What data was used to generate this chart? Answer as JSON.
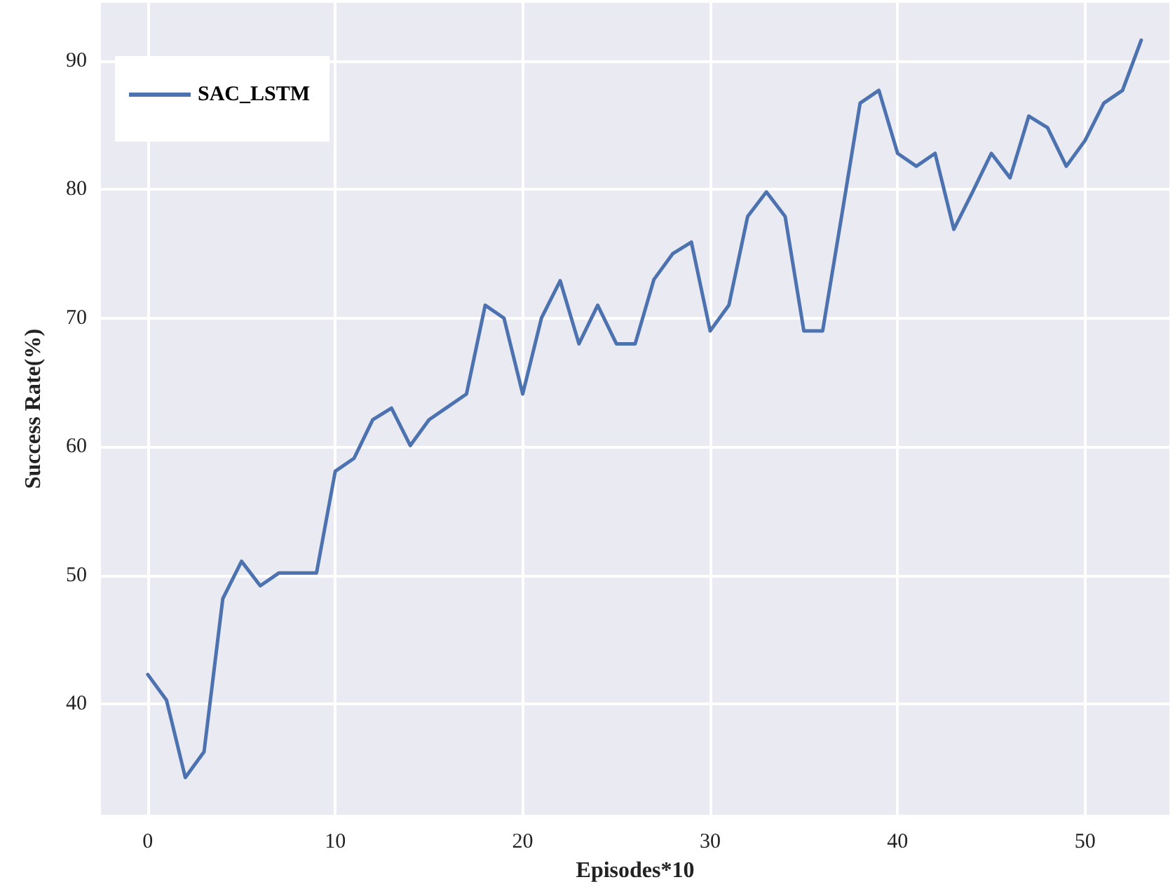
{
  "chart_data": {
    "type": "line",
    "xlabel": "Episodes*10",
    "ylabel": "Success Rate(%)",
    "x": [
      0,
      1,
      2,
      3,
      4,
      5,
      6,
      7,
      8,
      9,
      10,
      11,
      12,
      13,
      14,
      15,
      16,
      17,
      18,
      19,
      20,
      21,
      22,
      23,
      24,
      25,
      26,
      27,
      28,
      29,
      30,
      31,
      32,
      33,
      34,
      35,
      36,
      37,
      38,
      39,
      40,
      41,
      42,
      43,
      44,
      45,
      46,
      47,
      48,
      49,
      50,
      51,
      52,
      53
    ],
    "series": [
      {
        "name": "SAC_LSTM",
        "color": "#4c72b0",
        "values": [
          42.3,
          40.3,
          34.3,
          36.3,
          48.2,
          51.1,
          49.2,
          50.2,
          50.2,
          50.2,
          58.1,
          59.1,
          62.1,
          63,
          60.1,
          62.1,
          63.1,
          64.1,
          71,
          70,
          64.1,
          70,
          72.9,
          68,
          71,
          68,
          68,
          73,
          75,
          75.9,
          69,
          71,
          77.9,
          79.8,
          77.9,
          69,
          69,
          77.8,
          86.7,
          87.7,
          82.8,
          81.8,
          82.8,
          76.9,
          79.8,
          82.8,
          80.9,
          85.7,
          84.8,
          81.8,
          83.8,
          86.7,
          87.7,
          91.6
        ]
      }
    ],
    "xlim": [
      -2.5,
      54.5
    ],
    "xticks": [
      0,
      10,
      20,
      30,
      40,
      50
    ],
    "ylim": [
      31.4,
      94.5
    ],
    "yticks": [
      40,
      50,
      60,
      70,
      80,
      90
    ],
    "grid": true,
    "legend": "top left",
    "marker": "none",
    "line_style": "solid"
  }
}
